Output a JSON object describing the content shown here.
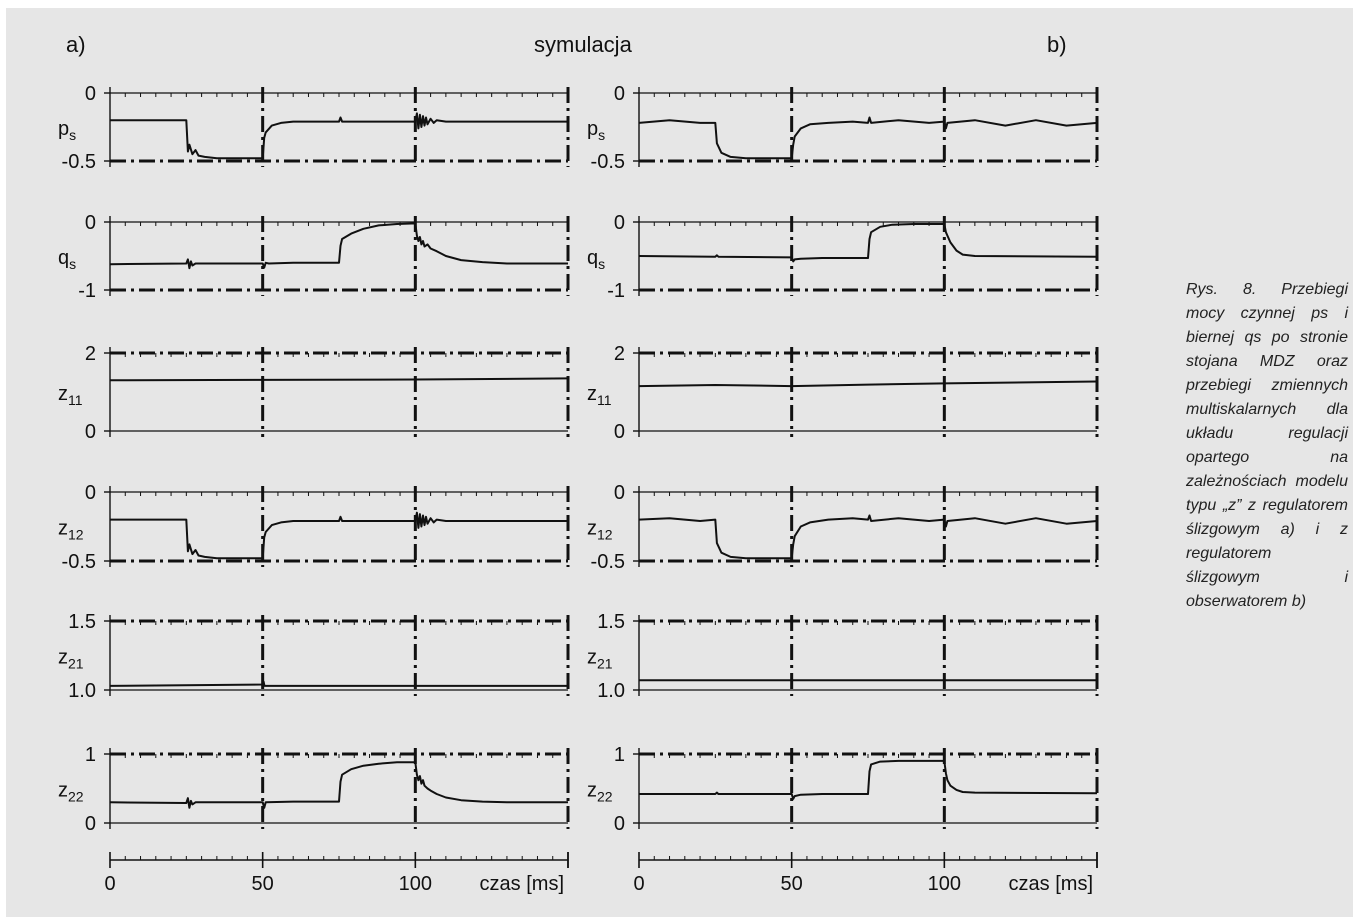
{
  "header": {
    "left_label": "a)",
    "center_title": "symulacja",
    "right_label": "b)"
  },
  "caption": "Rys. 8. Przebiegi mocy czynnej ps i biernej qs po stronie stojana MDZ oraz przebiegi zmiennych multiskalarnych dla układu regulacji opartego na zależnościach modelu typu „z” z regulatorem ślizgowym a) i z regulatorem ślizgowym i obserwatorem b)",
  "colors": {
    "background": "#e6e6e6",
    "trace": "#111111"
  },
  "chart_data": {
    "type": "line",
    "xlabel": "czas [ms]",
    "x_ticks": [
      "0",
      "50",
      "100"
    ],
    "xlim": [
      0,
      150
    ],
    "event_times_ms": [
      50,
      100
    ],
    "rows": [
      {
        "key": "ps",
        "label_main": "p",
        "label_sub": "s",
        "ylim": [
          -0.5,
          0
        ],
        "ytick_labels": [
          "0",
          "-0.5"
        ],
        "series": {
          "a": [
            [
              0,
              -0.2
            ],
            [
              25,
              -0.2
            ],
            [
              25.5,
              -0.43
            ],
            [
              26,
              -0.38
            ],
            [
              27,
              -0.45
            ],
            [
              28,
              -0.42
            ],
            [
              29,
              -0.46
            ],
            [
              31,
              -0.47
            ],
            [
              35,
              -0.48
            ],
            [
              50,
              -0.48
            ],
            [
              50.5,
              -0.33
            ],
            [
              51,
              -0.29
            ],
            [
              53,
              -0.24
            ],
            [
              56,
              -0.22
            ],
            [
              60,
              -0.21
            ],
            [
              75,
              -0.21
            ],
            [
              75.5,
              -0.18
            ],
            [
              76,
              -0.21
            ],
            [
              100,
              -0.21
            ],
            [
              100.5,
              -0.15
            ],
            [
              101,
              -0.26
            ],
            [
              101.5,
              -0.16
            ],
            [
              102,
              -0.25
            ],
            [
              102.5,
              -0.17
            ],
            [
              103,
              -0.24
            ],
            [
              103.5,
              -0.18
            ],
            [
              104,
              -0.23
            ],
            [
              105,
              -0.19
            ],
            [
              106,
              -0.22
            ],
            [
              107,
              -0.2
            ],
            [
              110,
              -0.21
            ],
            [
              150,
              -0.21
            ]
          ],
          "b": [
            [
              0,
              -0.22
            ],
            [
              10,
              -0.2
            ],
            [
              20,
              -0.22
            ],
            [
              25,
              -0.22
            ],
            [
              25.5,
              -0.37
            ],
            [
              27,
              -0.44
            ],
            [
              30,
              -0.47
            ],
            [
              35,
              -0.48
            ],
            [
              50,
              -0.48
            ],
            [
              50.5,
              -0.38
            ],
            [
              51,
              -0.32
            ],
            [
              53,
              -0.26
            ],
            [
              56,
              -0.23
            ],
            [
              62,
              -0.22
            ],
            [
              70,
              -0.21
            ],
            [
              75,
              -0.22
            ],
            [
              75.5,
              -0.18
            ],
            [
              76,
              -0.22
            ],
            [
              85,
              -0.2
            ],
            [
              95,
              -0.22
            ],
            [
              100,
              -0.21
            ],
            [
              100.5,
              -0.26
            ],
            [
              101,
              -0.22
            ],
            [
              110,
              -0.2
            ],
            [
              120,
              -0.24
            ],
            [
              130,
              -0.2
            ],
            [
              140,
              -0.24
            ],
            [
              150,
              -0.22
            ]
          ]
        }
      },
      {
        "key": "qs",
        "label_main": "q",
        "label_sub": "s",
        "ylim": [
          -1,
          0
        ],
        "ytick_labels": [
          "0",
          "-1"
        ],
        "series": {
          "a": [
            [
              0,
              -0.62
            ],
            [
              25,
              -0.61
            ],
            [
              25.5,
              -0.55
            ],
            [
              26,
              -0.68
            ],
            [
              26.5,
              -0.58
            ],
            [
              27,
              -0.64
            ],
            [
              28,
              -0.61
            ],
            [
              40,
              -0.61
            ],
            [
              50,
              -0.61
            ],
            [
              50.5,
              -0.67
            ],
            [
              51,
              -0.6
            ],
            [
              52,
              -0.61
            ],
            [
              60,
              -0.6
            ],
            [
              74,
              -0.6
            ],
            [
              75,
              -0.6
            ],
            [
              75.5,
              -0.35
            ],
            [
              76,
              -0.25
            ],
            [
              79,
              -0.17
            ],
            [
              83,
              -0.1
            ],
            [
              88,
              -0.05
            ],
            [
              94,
              -0.03
            ],
            [
              100,
              -0.02
            ],
            [
              100.5,
              -0.2
            ],
            [
              101,
              -0.28
            ],
            [
              101.5,
              -0.22
            ],
            [
              102,
              -0.33
            ],
            [
              102.5,
              -0.28
            ],
            [
              103,
              -0.36
            ],
            [
              104,
              -0.33
            ],
            [
              105,
              -0.39
            ],
            [
              107,
              -0.43
            ],
            [
              110,
              -0.5
            ],
            [
              115,
              -0.56
            ],
            [
              122,
              -0.59
            ],
            [
              130,
              -0.61
            ],
            [
              150,
              -0.61
            ]
          ],
          "b": [
            [
              0,
              -0.5
            ],
            [
              25,
              -0.51
            ],
            [
              25.5,
              -0.49
            ],
            [
              26,
              -0.51
            ],
            [
              50,
              -0.52
            ],
            [
              50.5,
              -0.58
            ],
            [
              51,
              -0.55
            ],
            [
              53,
              -0.54
            ],
            [
              60,
              -0.53
            ],
            [
              75,
              -0.53
            ],
            [
              75.5,
              -0.25
            ],
            [
              76,
              -0.15
            ],
            [
              79,
              -0.07
            ],
            [
              83,
              -0.04
            ],
            [
              90,
              -0.03
            ],
            [
              100,
              -0.03
            ],
            [
              100.5,
              -0.15
            ],
            [
              101,
              -0.2
            ],
            [
              102,
              -0.3
            ],
            [
              104,
              -0.42
            ],
            [
              106,
              -0.48
            ],
            [
              110,
              -0.5
            ],
            [
              150,
              -0.51
            ]
          ]
        }
      },
      {
        "key": "z11",
        "label_main": "z",
        "label_sub": "11",
        "ylim": [
          0,
          2
        ],
        "ytick_labels": [
          "2",
          "0"
        ],
        "series": {
          "a": [
            [
              0,
              1.3
            ],
            [
              50,
              1.31
            ],
            [
              100,
              1.32
            ],
            [
              150,
              1.35
            ]
          ],
          "b": [
            [
              0,
              1.15
            ],
            [
              25,
              1.18
            ],
            [
              50,
              1.15
            ],
            [
              75,
              1.19
            ],
            [
              100,
              1.22
            ],
            [
              150,
              1.27
            ]
          ]
        }
      },
      {
        "key": "z12",
        "label_main": "z",
        "label_sub": "12",
        "ylim": [
          -0.5,
          0
        ],
        "ytick_labels": [
          "0",
          "-0.5"
        ],
        "series": {
          "a": [
            [
              0,
              -0.2
            ],
            [
              25,
              -0.2
            ],
            [
              25.5,
              -0.43
            ],
            [
              26,
              -0.38
            ],
            [
              27,
              -0.45
            ],
            [
              28,
              -0.42
            ],
            [
              29,
              -0.46
            ],
            [
              31,
              -0.47
            ],
            [
              35,
              -0.48
            ],
            [
              50,
              -0.48
            ],
            [
              50.5,
              -0.33
            ],
            [
              51,
              -0.29
            ],
            [
              53,
              -0.24
            ],
            [
              56,
              -0.22
            ],
            [
              60,
              -0.21
            ],
            [
              75,
              -0.21
            ],
            [
              75.5,
              -0.18
            ],
            [
              76,
              -0.21
            ],
            [
              100,
              -0.21
            ],
            [
              100.5,
              -0.15
            ],
            [
              101,
              -0.26
            ],
            [
              101.5,
              -0.16
            ],
            [
              102,
              -0.25
            ],
            [
              102.5,
              -0.17
            ],
            [
              103,
              -0.24
            ],
            [
              103.5,
              -0.18
            ],
            [
              104,
              -0.23
            ],
            [
              105,
              -0.19
            ],
            [
              106,
              -0.22
            ],
            [
              107,
              -0.2
            ],
            [
              110,
              -0.21
            ],
            [
              150,
              -0.21
            ]
          ],
          "b": [
            [
              0,
              -0.2
            ],
            [
              10,
              -0.19
            ],
            [
              20,
              -0.21
            ],
            [
              25,
              -0.2
            ],
            [
              25.5,
              -0.37
            ],
            [
              27,
              -0.44
            ],
            [
              30,
              -0.47
            ],
            [
              35,
              -0.48
            ],
            [
              50,
              -0.48
            ],
            [
              50.5,
              -0.38
            ],
            [
              51,
              -0.32
            ],
            [
              53,
              -0.25
            ],
            [
              56,
              -0.22
            ],
            [
              62,
              -0.2
            ],
            [
              70,
              -0.19
            ],
            [
              75,
              -0.2
            ],
            [
              75.5,
              -0.17
            ],
            [
              76,
              -0.21
            ],
            [
              85,
              -0.19
            ],
            [
              95,
              -0.21
            ],
            [
              100,
              -0.2
            ],
            [
              100.5,
              -0.25
            ],
            [
              101,
              -0.21
            ],
            [
              110,
              -0.19
            ],
            [
              120,
              -0.23
            ],
            [
              130,
              -0.19
            ],
            [
              140,
              -0.23
            ],
            [
              150,
              -0.21
            ]
          ]
        }
      },
      {
        "key": "z21",
        "label_main": "z",
        "label_sub": "21",
        "ylim": [
          1.0,
          1.5
        ],
        "ytick_labels": [
          "1.5",
          "1.0"
        ],
        "series": {
          "a": [
            [
              0,
              1.03
            ],
            [
              50,
              1.04
            ],
            [
              50.3,
              1.06
            ],
            [
              50.6,
              1.03
            ],
            [
              100,
              1.03
            ],
            [
              150,
              1.03
            ]
          ],
          "b": [
            [
              0,
              1.07
            ],
            [
              50,
              1.07
            ],
            [
              100,
              1.07
            ],
            [
              150,
              1.07
            ]
          ]
        }
      },
      {
        "key": "z22",
        "label_main": "z",
        "label_sub": "22",
        "ylim": [
          0,
          1
        ],
        "ytick_labels": [
          "1",
          "0"
        ],
        "series": {
          "a": [
            [
              0,
              0.3
            ],
            [
              25,
              0.29
            ],
            [
              25.5,
              0.36
            ],
            [
              26,
              0.22
            ],
            [
              26.5,
              0.32
            ],
            [
              27,
              0.27
            ],
            [
              28,
              0.3
            ],
            [
              40,
              0.3
            ],
            [
              50,
              0.3
            ],
            [
              50.5,
              0.22
            ],
            [
              51,
              0.3
            ],
            [
              60,
              0.31
            ],
            [
              75,
              0.31
            ],
            [
              75.5,
              0.6
            ],
            [
              76,
              0.7
            ],
            [
              79,
              0.78
            ],
            [
              83,
              0.83
            ],
            [
              88,
              0.86
            ],
            [
              94,
              0.88
            ],
            [
              100,
              0.88
            ],
            [
              100.5,
              0.7
            ],
            [
              101,
              0.62
            ],
            [
              101.5,
              0.68
            ],
            [
              102,
              0.57
            ],
            [
              102.5,
              0.62
            ],
            [
              103,
              0.54
            ],
            [
              104,
              0.5
            ],
            [
              105,
              0.47
            ],
            [
              107,
              0.42
            ],
            [
              110,
              0.37
            ],
            [
              115,
              0.33
            ],
            [
              122,
              0.31
            ],
            [
              130,
              0.3
            ],
            [
              150,
              0.3
            ]
          ],
          "b": [
            [
              0,
              0.42
            ],
            [
              25,
              0.42
            ],
            [
              25.5,
              0.44
            ],
            [
              26,
              0.42
            ],
            [
              50,
              0.42
            ],
            [
              50.5,
              0.35
            ],
            [
              51,
              0.39
            ],
            [
              53,
              0.41
            ],
            [
              60,
              0.42
            ],
            [
              75,
              0.42
            ],
            [
              75.5,
              0.75
            ],
            [
              76,
              0.85
            ],
            [
              79,
              0.89
            ],
            [
              85,
              0.9
            ],
            [
              100,
              0.9
            ],
            [
              100.5,
              0.72
            ],
            [
              101,
              0.62
            ],
            [
              102,
              0.54
            ],
            [
              104,
              0.48
            ],
            [
              106,
              0.45
            ],
            [
              110,
              0.44
            ],
            [
              150,
              0.43
            ]
          ]
        }
      }
    ]
  }
}
